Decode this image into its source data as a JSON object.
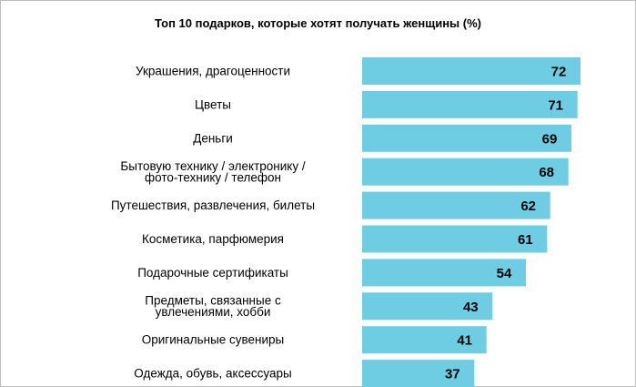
{
  "chart_data": {
    "type": "bar",
    "orientation": "horizontal",
    "title": "Топ 10 подарков, которые хотят получать женщины (%)",
    "categories": [
      "Украшения, драгоценности",
      "Цветы",
      "Деньги",
      "Бытовую технику / электронику / фото-технику / телефон",
      "Путешествия, развлечения, билеты",
      "Косметика, парфюмерия",
      "Подарочные сертификаты",
      "Предметы, связанные с увлечениями, хобби",
      "Оригинальные сувениры",
      "Одежда, обувь, аксессуары"
    ],
    "category_lines": [
      [
        "Украшения, драгоценности"
      ],
      [
        "Цветы"
      ],
      [
        "Деньги"
      ],
      [
        "Бытовую технику / электронику /",
        "фото-технику / телефон"
      ],
      [
        "Путешествия, развлечения, билеты"
      ],
      [
        "Косметика, парфюмерия"
      ],
      [
        "Подарочные сертификаты"
      ],
      [
        "Предметы, связанные с",
        "увлечениями, хобби"
      ],
      [
        "Оригинальные сувениры"
      ],
      [
        "Одежда, обувь, аксессуары"
      ]
    ],
    "values": [
      72,
      71,
      69,
      68,
      62,
      61,
      54,
      43,
      41,
      37
    ],
    "value_labels": [
      "72",
      "71",
      "69",
      "68",
      "62",
      "61",
      "54",
      "43",
      "41",
      "37"
    ],
    "xlim": [
      0,
      72
    ],
    "grid": false,
    "colors": {
      "bar": "#6ecde3"
    }
  }
}
